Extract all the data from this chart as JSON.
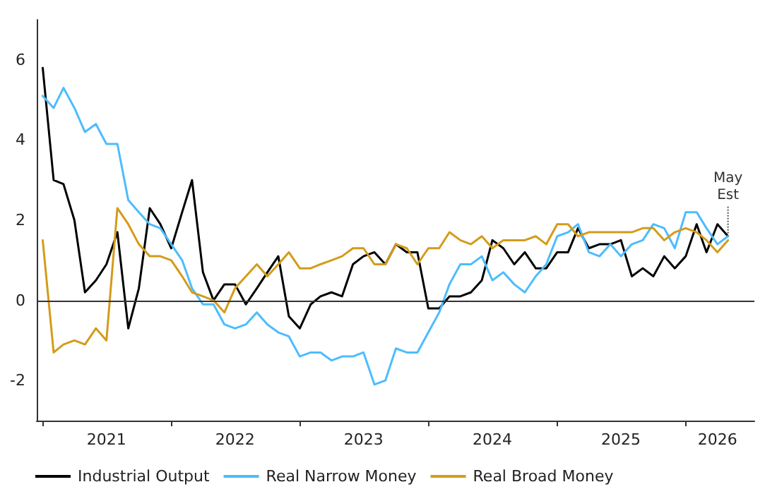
{
  "chart_data": {
    "type": "line",
    "x": [
      "2021-01",
      "2021-02",
      "2021-03",
      "2021-04",
      "2021-05",
      "2021-06",
      "2021-07",
      "2021-08",
      "2021-09",
      "2021-10",
      "2021-11",
      "2021-12",
      "2022-01",
      "2022-02",
      "2022-03",
      "2022-04",
      "2022-05",
      "2022-06",
      "2022-07",
      "2022-08",
      "2022-09",
      "2022-10",
      "2022-11",
      "2022-12",
      "2023-01",
      "2023-02",
      "2023-03",
      "2023-04",
      "2023-05",
      "2023-06",
      "2023-07",
      "2023-08",
      "2023-09",
      "2023-10",
      "2023-11",
      "2023-12",
      "2024-01",
      "2024-02",
      "2024-03",
      "2024-04",
      "2024-05",
      "2024-06",
      "2024-07",
      "2024-08",
      "2024-09",
      "2024-10",
      "2024-11",
      "2024-12",
      "2025-01",
      "2025-02",
      "2025-03",
      "2025-04",
      "2025-05",
      "2025-06",
      "2025-07",
      "2025-08",
      "2025-09",
      "2025-10",
      "2025-11",
      "2025-12",
      "2026-01",
      "2026-02",
      "2026-03",
      "2026-04",
      "2026-05"
    ],
    "series": [
      {
        "name": "Industrial Output",
        "color": "#000000",
        "values": [
          5.8,
          3.0,
          2.9,
          2.0,
          0.2,
          0.5,
          0.9,
          1.7,
          -0.7,
          0.3,
          2.3,
          1.9,
          1.3,
          2.2,
          3.0,
          0.7,
          0.0,
          0.4,
          0.4,
          -0.1,
          0.3,
          0.7,
          1.1,
          -0.4,
          -0.7,
          -0.1,
          0.1,
          0.2,
          0.1,
          0.9,
          1.1,
          1.2,
          0.9,
          1.4,
          1.2,
          1.2,
          -0.2,
          -0.2,
          0.1,
          0.1,
          0.2,
          0.5,
          1.5,
          1.3,
          0.9,
          1.2,
          0.8,
          0.8,
          1.2,
          1.2,
          1.8,
          1.3,
          1.4,
          1.4,
          1.5,
          0.6,
          0.8,
          0.6,
          1.1,
          0.8,
          1.1,
          1.9,
          1.2,
          1.9,
          1.6
        ]
      },
      {
        "name": "Real Narrow Money",
        "color": "#4dbcff",
        "values": [
          5.1,
          4.8,
          5.3,
          4.8,
          4.2,
          4.4,
          3.9,
          3.9,
          2.5,
          2.2,
          1.9,
          1.8,
          1.4,
          1.0,
          0.3,
          -0.1,
          -0.1,
          -0.6,
          -0.7,
          -0.6,
          -0.3,
          -0.6,
          -0.8,
          -0.9,
          -1.4,
          -1.3,
          -1.3,
          -1.5,
          -1.4,
          -1.4,
          -1.3,
          -2.1,
          -2.0,
          -1.2,
          -1.3,
          -1.3,
          -0.8,
          -0.3,
          0.4,
          0.9,
          0.9,
          1.1,
          0.5,
          0.7,
          0.4,
          0.2,
          0.6,
          0.9,
          1.6,
          1.7,
          1.9,
          1.2,
          1.1,
          1.4,
          1.1,
          1.4,
          1.5,
          1.9,
          1.8,
          1.3,
          2.2,
          2.2,
          1.8,
          1.4,
          1.6
        ]
      },
      {
        "name": "Real Broad Money",
        "color": "#d49b1a",
        "values": [
          1.5,
          -1.3,
          -1.1,
          -1.0,
          -1.1,
          -0.7,
          -1.0,
          2.3,
          1.9,
          1.4,
          1.1,
          1.1,
          1.0,
          0.6,
          0.2,
          0.1,
          0.0,
          -0.3,
          0.3,
          0.6,
          0.9,
          0.6,
          0.9,
          1.2,
          0.8,
          0.8,
          0.9,
          1.0,
          1.1,
          1.3,
          1.3,
          0.9,
          0.9,
          1.4,
          1.3,
          0.9,
          1.3,
          1.3,
          1.7,
          1.5,
          1.4,
          1.6,
          1.3,
          1.5,
          1.5,
          1.5,
          1.6,
          1.4,
          1.9,
          1.9,
          1.6,
          1.7,
          1.7,
          1.7,
          1.7,
          1.7,
          1.8,
          1.8,
          1.5,
          1.7,
          1.8,
          1.7,
          1.5,
          1.2,
          1.5
        ]
      }
    ],
    "xlim": [
      "2020-12-15",
      "2026-07-15"
    ],
    "xticks": [
      {
        "value": "2021-01",
        "label": null
      },
      {
        "value": "2021-07",
        "label": "2021"
      },
      {
        "value": "2022-01",
        "label": null
      },
      {
        "value": "2022-07",
        "label": "2022"
      },
      {
        "value": "2023-01",
        "label": null
      },
      {
        "value": "2023-07",
        "label": "2023"
      },
      {
        "value": "2024-01",
        "label": null
      },
      {
        "value": "2024-07",
        "label": "2024"
      },
      {
        "value": "2025-01",
        "label": null
      },
      {
        "value": "2025-07",
        "label": "2025"
      },
      {
        "value": "2026-01",
        "label": null
      },
      {
        "value": "2026-04",
        "label": "2026"
      }
    ],
    "ylim": [
      -3,
      7
    ],
    "yticks": [
      -2,
      0,
      2,
      4,
      6
    ],
    "ref_lines": [
      {
        "axis": "y",
        "value": 0,
        "color": "#333333"
      }
    ],
    "annotations": [
      {
        "text": "May\nEst",
        "x": "2026-05",
        "y": 1.6
      }
    ],
    "grid": false,
    "legend": "bottom",
    "line_style": "solid",
    "marker": "none"
  }
}
